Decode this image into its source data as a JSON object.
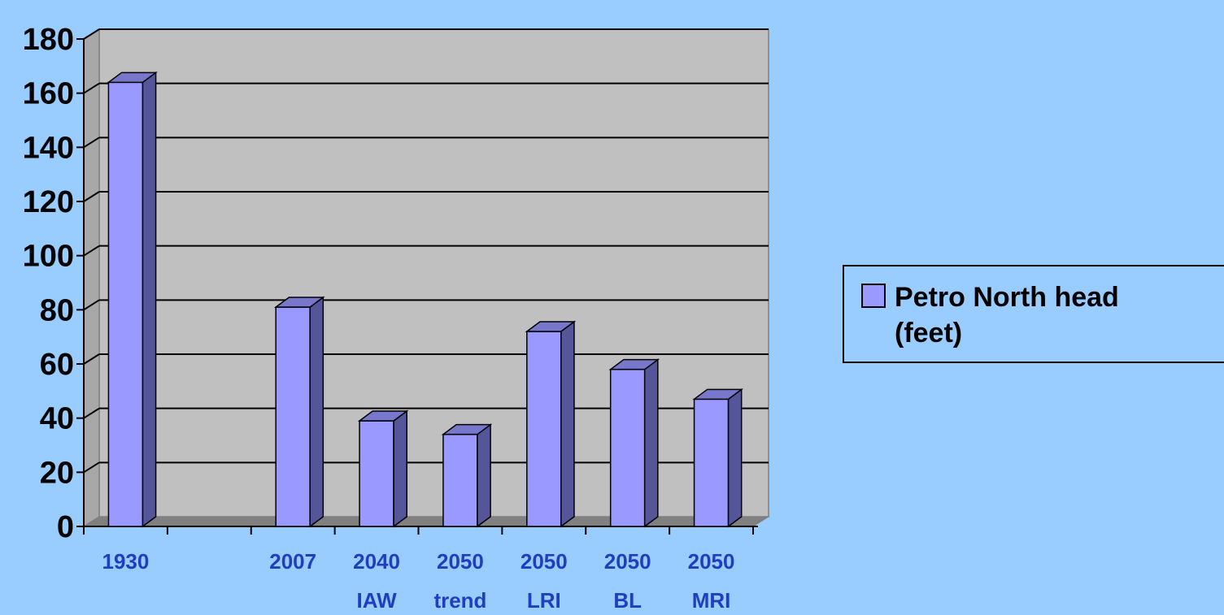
{
  "chart_data": {
    "type": "bar",
    "style": "3d-column",
    "categories": [
      [
        "1930"
      ],
      [
        ""
      ],
      [
        "2007"
      ],
      [
        "2040",
        "IAW"
      ],
      [
        "2050",
        "trend"
      ],
      [
        "2050",
        "LRI"
      ],
      [
        "2050",
        "BL"
      ],
      [
        "2050",
        "MRI"
      ]
    ],
    "series": [
      {
        "name": "Petro North head (feet)",
        "legend_lines": [
          "Petro North head",
          "(feet)"
        ],
        "values": [
          164,
          null,
          81,
          39,
          34,
          72,
          58,
          47
        ]
      }
    ],
    "title": "",
    "xlabel": "",
    "ylabel": "",
    "ylim": [
      0,
      180
    ],
    "yticks": [
      "0",
      "20",
      "40",
      "60",
      "80",
      "100",
      "120",
      "140",
      "160",
      "180"
    ],
    "grid": true,
    "legend_position": "right",
    "colors": {
      "background": "#99ccff",
      "plot_back_wall": "#c0c0c0",
      "plot_side_wall": "#a8a8a8",
      "floor": "#808080",
      "grid_line": "#000000",
      "bar_front": "#9999ff",
      "bar_side": "#555599",
      "bar_top": "#7777cc",
      "x_label": "#1f3fbf",
      "y_label": "#000000"
    }
  }
}
